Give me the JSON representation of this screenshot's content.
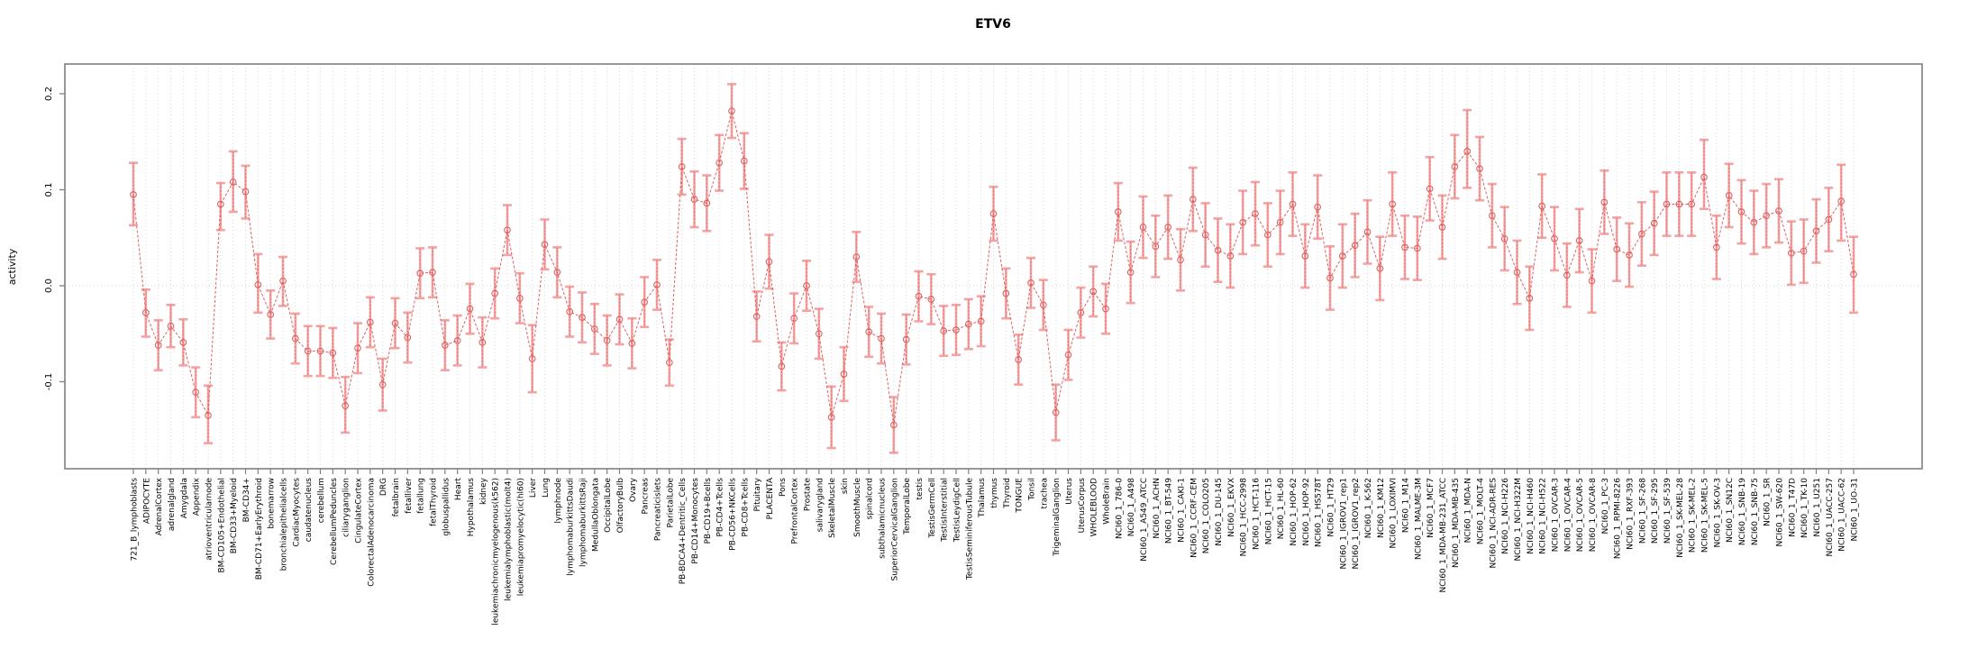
{
  "title": "ETV6",
  "ylabel": "activity",
  "colors": {
    "point": "#e06060",
    "line": "#e06060",
    "error_bar": "#f4a3a3",
    "grid": "#d6d6d6",
    "axis": "#7f7f7f",
    "text": "#000000",
    "background": "#ffffff"
  },
  "chart_data": {
    "type": "line",
    "title": "ETV6",
    "xlabel": "",
    "ylabel": "activity",
    "ylim": [
      -0.19,
      0.23
    ],
    "yticks": [
      0.2,
      0.1,
      0.0,
      -0.1
    ],
    "grid": "dotted vertical line per category; dotted horizontal line at 0",
    "legend": "none",
    "marker": "open-circle",
    "error_bars": true,
    "categories": [
      "721_B_lymphoblasts",
      "ADIPOCYTE",
      "AdrenalCortex",
      "adrenalgland",
      "Amygdala",
      "Appendix",
      "atrioventricularnode",
      "BM-CD105+Endothelial",
      "BM-CD33+Myeloid",
      "BM-CD34+",
      "BM-CD71+EarlyErythroid",
      "bonemarrow",
      "bronchialepithelialcells",
      "CardiacMyocytes",
      "caudatenucleus",
      "cerebellum",
      "CerebellumPeduncles",
      "ciliaryganglion",
      "CingulateCortex",
      "ColorectalAdenocarcinoma",
      "DRG",
      "fetalbrain",
      "fetalliver",
      "fetallung",
      "fetalThyroid",
      "globuspallidus",
      "Heart",
      "Hypothalamus",
      "kidney",
      "leukemiachronicmyelogenous(k562)",
      "leukemialymphoblastic(molt4)",
      "leukemiapromyelocytic(hl60)",
      "Liver",
      "Lung",
      "lymphnode",
      "lymphomaburkittsDaudi",
      "lymphomaburkittsRaji",
      "MedullaOblongata",
      "OccipitalLobe",
      "OlfactoryBulb",
      "Ovary",
      "Pancreas",
      "Pancreaticislets",
      "ParietalLobe",
      "PB-BDCA4+Dentritic_Cells",
      "PB-CD14+Monocytes",
      "PB-CD19+Bcells",
      "PB-CD4+Tcells",
      "PB-CD56+NKCells",
      "PB-CD8+Tcells",
      "Pituitary",
      "PLACENTA",
      "Pons",
      "PrefrontalCortex",
      "Prostate",
      "salivarygland",
      "SkeletalMuscle",
      "skin",
      "SmoothMuscle",
      "spinalcord",
      "subthalamicnucleus",
      "SuperiorCervicalGanglion",
      "TemporalLobe",
      "testis",
      "TestisGermCell",
      "TestisInterstitial",
      "TestisLeydigCell",
      "TestisSeminiferousTubule",
      "Thalamus",
      "thymus",
      "Thyroid",
      "TONGUE",
      "Tonsil",
      "trachea",
      "TrigeminalGanglion",
      "Uterus",
      "UterusCorpus",
      "WHOLEBLOOD",
      "WholeBrain",
      "NCI60_1_786-0",
      "NCI60_1_A498",
      "NCI60_1_A549_ATCC",
      "NCI60_1_ACHN",
      "NCI60_1_BT-549",
      "NCI60_1_CAKI-1",
      "NCI60_1_CCRF-CEM",
      "NCI60_1_COLO205",
      "NCI60_1_DU-145",
      "NCI60_1_EKVX",
      "NCI60_1_HCC-2998",
      "NCI60_1_HCT-116",
      "NCI60_1_HCT-15",
      "NCI60_1_HL-60",
      "NCI60_1_HOP-62",
      "NCI60_1_HOP-92",
      "NCI60_1_HS578T",
      "NCI60_1_HT29",
      "NCI60_1_IGROV1_rep1",
      "NCI60_1_IGROV1_rep2",
      "NCI60_1_K-562",
      "NCI60_1_KM12",
      "NCI60_1_LOXIMVI",
      "NCI60_1_M14",
      "NCI60_1_MALME-3M",
      "NCI60_1_MCF7",
      "NCI60_1_MDA-MB-231_ATCC",
      "NCI60_1_MDA-MB-435",
      "NCI60_1_MDA-N",
      "NCI60_1_MOLT-4",
      "NCI60_1_NCI-ADR-RES",
      "NCI60_1_NCI-H226",
      "NCI60_1_NCI-H322M",
      "NCI60_1_NCI-H460",
      "NCI60_1_NCI-H522",
      "NCI60_1_OVCAR-3",
      "NCI60_1_OVCAR-4",
      "NCI60_1_OVCAR-5",
      "NCI60_1_OVCAR-8",
      "NCI60_1_PC-3",
      "NCI60_1_RPMI-8226",
      "NCI60_1_RXF-393",
      "NCI60_1_SF-268",
      "NCI60_1_SF-295",
      "NCI60_1_SF-539",
      "NCI60_1_SK-MEL-28",
      "NCI60_1_SK-MEL-2",
      "NCI60_1_SK-MEL-5",
      "NCI60_1_SK-OV-3",
      "NCI60_1_SN12C",
      "NCI60_1_SNB-19",
      "NCI60_1_SNB-75",
      "NCI60_1_SR",
      "NCI60_1_SW-620",
      "NCI60_1_T47D",
      "NCI60_1_TK-10",
      "NCI60_1_U251",
      "NCI60_1_UACC-257",
      "NCI60_1_UACC-62",
      "NCI60_1_UO-31"
    ],
    "values": [
      0.095,
      -0.028,
      -0.062,
      -0.042,
      -0.059,
      -0.111,
      -0.135,
      0.085,
      0.108,
      0.098,
      0.001,
      -0.03,
      0.005,
      -0.055,
      -0.068,
      -0.068,
      -0.07,
      -0.125,
      -0.065,
      -0.038,
      -0.103,
      -0.039,
      -0.054,
      0.013,
      0.014,
      -0.062,
      -0.057,
      -0.024,
      -0.059,
      -0.008,
      0.058,
      -0.013,
      -0.076,
      0.043,
      0.014,
      -0.027,
      -0.033,
      -0.045,
      -0.057,
      -0.035,
      -0.06,
      -0.017,
      0.001,
      -0.08,
      0.124,
      0.09,
      0.086,
      0.128,
      0.182,
      0.13,
      -0.032,
      0.025,
      -0.084,
      -0.034,
      0.0,
      -0.05,
      -0.137,
      -0.092,
      0.03,
      -0.048,
      -0.055,
      -0.145,
      -0.056,
      -0.011,
      -0.014,
      -0.047,
      -0.046,
      -0.04,
      -0.037,
      0.075,
      -0.008,
      -0.077,
      0.003,
      -0.02,
      -0.132,
      -0.072,
      -0.028,
      -0.006,
      -0.024,
      0.077,
      0.014,
      0.061,
      0.041,
      0.061,
      0.027,
      0.09,
      0.053,
      0.037,
      0.031,
      0.066,
      0.075,
      0.053,
      0.066,
      0.085,
      0.031,
      0.082,
      0.008,
      0.031,
      0.042,
      0.056,
      0.018,
      0.085,
      0.04,
      0.039,
      0.101,
      0.061,
      0.124,
      0.14,
      0.122,
      0.073,
      0.049,
      0.014,
      -0.013,
      0.083,
      0.049,
      0.011,
      0.047,
      0.005,
      0.087,
      0.038,
      0.032,
      0.054,
      0.065,
      0.085,
      0.085,
      0.085,
      0.113,
      0.04,
      0.094,
      0.077,
      0.066,
      0.073,
      0.078,
      0.034,
      0.036,
      0.057,
      0.069,
      0.088,
      0.012
    ],
    "err_lo": [
      0.063,
      -0.053,
      -0.088,
      -0.064,
      -0.083,
      -0.137,
      -0.164,
      0.058,
      0.077,
      0.07,
      -0.028,
      -0.055,
      -0.021,
      -0.081,
      -0.094,
      -0.094,
      -0.096,
      -0.153,
      -0.091,
      -0.064,
      -0.13,
      -0.065,
      -0.08,
      -0.013,
      -0.012,
      -0.088,
      -0.083,
      -0.05,
      -0.085,
      -0.034,
      0.032,
      -0.039,
      -0.111,
      0.017,
      -0.012,
      -0.053,
      -0.059,
      -0.071,
      -0.083,
      -0.061,
      -0.086,
      -0.043,
      -0.025,
      -0.104,
      0.095,
      0.061,
      0.057,
      0.099,
      0.154,
      0.101,
      -0.058,
      -0.003,
      -0.109,
      -0.06,
      -0.026,
      -0.076,
      -0.169,
      -0.12,
      0.004,
      -0.074,
      -0.081,
      -0.174,
      -0.082,
      -0.037,
      -0.04,
      -0.073,
      -0.072,
      -0.066,
      -0.063,
      0.047,
      -0.034,
      -0.103,
      -0.023,
      -0.046,
      -0.161,
      -0.098,
      -0.054,
      -0.032,
      -0.05,
      0.047,
      -0.018,
      0.029,
      0.009,
      0.028,
      -0.005,
      0.057,
      0.02,
      0.004,
      -0.002,
      0.033,
      0.042,
      0.02,
      0.033,
      0.052,
      -0.002,
      0.049,
      -0.025,
      -0.002,
      0.009,
      0.023,
      -0.015,
      0.052,
      0.007,
      0.006,
      0.068,
      0.028,
      0.091,
      0.102,
      0.089,
      0.04,
      0.016,
      -0.019,
      -0.046,
      0.05,
      0.016,
      -0.022,
      0.014,
      -0.028,
      0.054,
      0.005,
      -0.001,
      0.021,
      0.032,
      0.052,
      0.052,
      0.052,
      0.08,
      0.007,
      0.061,
      0.044,
      0.033,
      0.04,
      0.045,
      0.001,
      0.003,
      0.024,
      0.036,
      0.047,
      -0.028
    ],
    "err_hi": [
      0.128,
      -0.004,
      -0.036,
      -0.02,
      -0.035,
      -0.085,
      -0.104,
      0.107,
      0.14,
      0.125,
      0.033,
      -0.005,
      0.03,
      -0.029,
      -0.042,
      -0.042,
      -0.044,
      -0.095,
      -0.039,
      -0.012,
      -0.076,
      -0.013,
      -0.028,
      0.039,
      0.04,
      -0.036,
      -0.031,
      0.002,
      -0.033,
      0.018,
      0.084,
      0.013,
      -0.041,
      0.069,
      0.04,
      -0.001,
      -0.007,
      -0.019,
      -0.031,
      -0.009,
      -0.034,
      0.009,
      0.027,
      -0.056,
      0.153,
      0.119,
      0.115,
      0.157,
      0.21,
      0.159,
      -0.006,
      0.053,
      -0.059,
      -0.008,
      0.026,
      -0.024,
      -0.105,
      -0.064,
      0.056,
      -0.022,
      -0.029,
      -0.116,
      -0.03,
      0.015,
      0.012,
      -0.021,
      -0.02,
      -0.014,
      -0.011,
      0.103,
      0.018,
      -0.051,
      0.029,
      0.006,
      -0.103,
      -0.046,
      -0.002,
      0.02,
      0.002,
      0.107,
      0.046,
      0.093,
      0.073,
      0.094,
      0.059,
      0.123,
      0.086,
      0.07,
      0.064,
      0.099,
      0.108,
      0.086,
      0.099,
      0.118,
      0.064,
      0.115,
      0.041,
      0.064,
      0.075,
      0.089,
      0.051,
      0.118,
      0.073,
      0.072,
      0.134,
      0.094,
      0.157,
      0.183,
      0.155,
      0.106,
      0.082,
      0.047,
      0.02,
      0.116,
      0.082,
      0.044,
      0.08,
      0.038,
      0.12,
      0.071,
      0.065,
      0.087,
      0.098,
      0.118,
      0.118,
      0.118,
      0.152,
      0.073,
      0.127,
      0.11,
      0.099,
      0.106,
      0.111,
      0.067,
      0.069,
      0.09,
      0.102,
      0.126,
      0.051
    ]
  }
}
